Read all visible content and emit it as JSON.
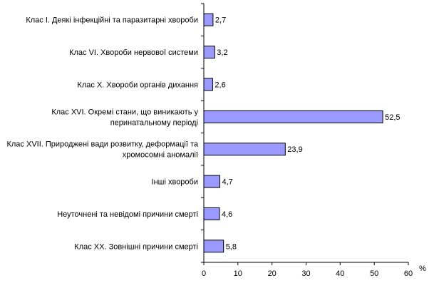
{
  "chart_data": {
    "type": "bar",
    "orientation": "horizontal",
    "categories": [
      [
        "Клас I. Деякі інфекційні та паразитарні хвороби"
      ],
      [
        "Клас VI. Хвороби нервової системи"
      ],
      [
        "Клас Х. Хвороби органів дихання"
      ],
      [
        "Клас XVI. Окремі стани, що виникають у",
        "перинатальному періоді"
      ],
      [
        "Клас XVII. Природжені вади розвитку, деформації та",
        "хромосомні аномалії"
      ],
      [
        "Інші хвороби"
      ],
      [
        "Неуточнені та невідомі причини смерті"
      ],
      [
        "Клас ХХ. Зовнішні причини смерті"
      ]
    ],
    "values": [
      2.7,
      3.2,
      2.6,
      52.5,
      23.9,
      4.7,
      4.6,
      5.8
    ],
    "value_labels": [
      "2,7",
      "3,2",
      "2,6",
      "52,5",
      "23,9",
      "4,7",
      "4,6",
      "5,8"
    ],
    "xlim": [
      0,
      60
    ],
    "xticks": [
      0,
      10,
      20,
      30,
      40,
      50,
      60
    ],
    "x_unit_label": "%",
    "title": "",
    "xlabel": "",
    "ylabel": "",
    "grid": false,
    "legend": "none",
    "colors": {
      "bar_fill": "#9999ff",
      "bar_stroke": "#000000",
      "axis": "#000000"
    }
  }
}
